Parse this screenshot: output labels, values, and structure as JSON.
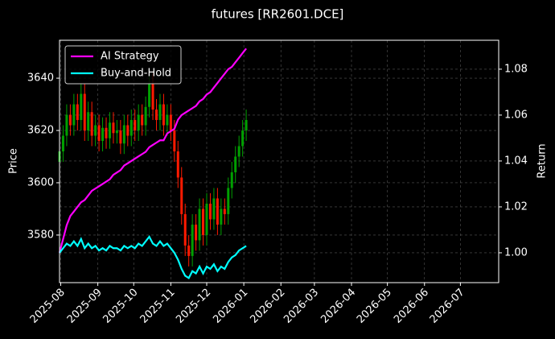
{
  "chart_data": {
    "type": "candlestick",
    "title": "futures [RR2601.DCE]",
    "y_label": "Price",
    "y2_label": "Return",
    "x": [
      20300,
      20303,
      20306,
      20309,
      20312,
      20315,
      20318,
      20321,
      20324,
      20327,
      20330,
      20333,
      20336,
      20339,
      20342,
      20345,
      20348,
      20351,
      20354,
      20357,
      20360,
      20363,
      20366,
      20369,
      20372,
      20375,
      20378,
      20381,
      20384,
      20387,
      20390,
      20393,
      20396,
      20399,
      20402,
      20405,
      20408,
      20411,
      20414,
      20417,
      20420,
      20423,
      20426,
      20429,
      20432,
      20435,
      20438,
      20441,
      20444,
      20447,
      20450,
      20453,
      20456
    ],
    "open": [
      3608,
      3612,
      3618,
      3626,
      3622,
      3630,
      3624,
      3634,
      3620,
      3627,
      3618,
      3622,
      3616,
      3621,
      3617,
      3623,
      3619,
      3620,
      3615,
      3622,
      3618,
      3624,
      3620,
      3626,
      3622,
      3629,
      3638,
      3628,
      3624,
      3630,
      3622,
      3626,
      3620,
      3612,
      3602,
      3588,
      3576,
      3572,
      3584,
      3578,
      3590,
      3580,
      3592,
      3586,
      3594,
      3584,
      3590,
      3588,
      3598,
      3604,
      3610,
      3614,
      3620
    ],
    "high": [
      3616,
      3622,
      3630,
      3630,
      3634,
      3634,
      3638,
      3638,
      3631,
      3631,
      3626,
      3626,
      3625,
      3625,
      3627,
      3627,
      3624,
      3624,
      3626,
      3626,
      3628,
      3628,
      3630,
      3630,
      3633,
      3642,
      3642,
      3632,
      3634,
      3634,
      3630,
      3630,
      3624,
      3616,
      3606,
      3592,
      3580,
      3588,
      3588,
      3594,
      3594,
      3596,
      3596,
      3598,
      3598,
      3594,
      3594,
      3602,
      3608,
      3614,
      3618,
      3624,
      3628
    ],
    "low": [
      3604,
      3608,
      3614,
      3618,
      3618,
      3620,
      3620,
      3616,
      3616,
      3614,
      3614,
      3612,
      3612,
      3613,
      3613,
      3615,
      3615,
      3611,
      3611,
      3614,
      3614,
      3616,
      3616,
      3618,
      3618,
      3625,
      3624,
      3620,
      3620,
      3618,
      3618,
      3616,
      3608,
      3598,
      3584,
      3572,
      3568,
      3568,
      3574,
      3574,
      3576,
      3576,
      3582,
      3582,
      3580,
      3580,
      3584,
      3584,
      3594,
      3600,
      3606,
      3610,
      3616
    ],
    "close": [
      3612,
      3618,
      3626,
      3622,
      3630,
      3624,
      3634,
      3620,
      3627,
      3618,
      3622,
      3616,
      3621,
      3617,
      3623,
      3619,
      3620,
      3615,
      3622,
      3618,
      3624,
      3620,
      3626,
      3622,
      3629,
      3638,
      3628,
      3624,
      3630,
      3622,
      3626,
      3620,
      3612,
      3602,
      3588,
      3576,
      3572,
      3584,
      3578,
      3590,
      3580,
      3592,
      3586,
      3594,
      3584,
      3590,
      3588,
      3598,
      3604,
      3610,
      3614,
      3620,
      3624
    ],
    "up_color": "#00a000",
    "down_color": "#ff1a00",
    "series": [
      {
        "name": "AI Strategy",
        "color": "#ff00ff",
        "axis": "y2",
        "values": [
          1.0,
          1.006,
          1.012,
          1.016,
          1.018,
          1.02,
          1.022,
          1.023,
          1.025,
          1.027,
          1.028,
          1.029,
          1.03,
          1.031,
          1.032,
          1.034,
          1.035,
          1.036,
          1.038,
          1.039,
          1.04,
          1.041,
          1.042,
          1.043,
          1.044,
          1.046,
          1.047,
          1.048,
          1.049,
          1.049,
          1.052,
          1.053,
          1.054,
          1.058,
          1.06,
          1.061,
          1.062,
          1.063,
          1.064,
          1.066,
          1.067,
          1.069,
          1.07,
          1.072,
          1.074,
          1.076,
          1.078,
          1.08,
          1.081,
          1.083,
          1.085,
          1.087,
          1.089
        ]
      },
      {
        "name": "Buy-and-Hold",
        "color": "#00ffff",
        "axis": "y2",
        "values": [
          1.0,
          1.002,
          1.004,
          1.003,
          1.005,
          1.003,
          1.006,
          1.002,
          1.004,
          1.002,
          1.003,
          1.001,
          1.002,
          1.001,
          1.003,
          1.002,
          1.002,
          1.001,
          1.003,
          1.002,
          1.003,
          1.002,
          1.004,
          1.003,
          1.005,
          1.007,
          1.004,
          1.003,
          1.005,
          1.003,
          1.004,
          1.002,
          1.0,
          0.997,
          0.993,
          0.99,
          0.989,
          0.992,
          0.991,
          0.994,
          0.991,
          0.994,
          0.993,
          0.995,
          0.992,
          0.994,
          0.993,
          0.996,
          0.998,
          0.999,
          1.001,
          1.002,
          1.003
        ]
      }
    ],
    "xlim": [
      20300,
      20667
    ],
    "xticks": [
      {
        "value": 20301,
        "label": "2025-08"
      },
      {
        "value": 20332,
        "label": "2025-09"
      },
      {
        "value": 20362,
        "label": "2025-10"
      },
      {
        "value": 20393,
        "label": "2025-11"
      },
      {
        "value": 20423,
        "label": "2025-12"
      },
      {
        "value": 20454,
        "label": "2026-01"
      },
      {
        "value": 20485,
        "label": "2026-02"
      },
      {
        "value": 20513,
        "label": "2026-03"
      },
      {
        "value": 20544,
        "label": "2026-04"
      },
      {
        "value": 20574,
        "label": "2026-05"
      },
      {
        "value": 20605,
        "label": "2026-06"
      },
      {
        "value": 20635,
        "label": "2026-07"
      }
    ],
    "ylim": [
      3561.8,
      3654.5
    ],
    "yticks": [
      3580,
      3600,
      3620,
      3640
    ],
    "y2lim": [
      0.987,
      1.0926
    ],
    "y2ticks": [
      {
        "value": 1,
        "label": "1.00"
      },
      1.02,
      1.04,
      1.06,
      1.08
    ],
    "grid": true,
    "legend": "upper left"
  }
}
